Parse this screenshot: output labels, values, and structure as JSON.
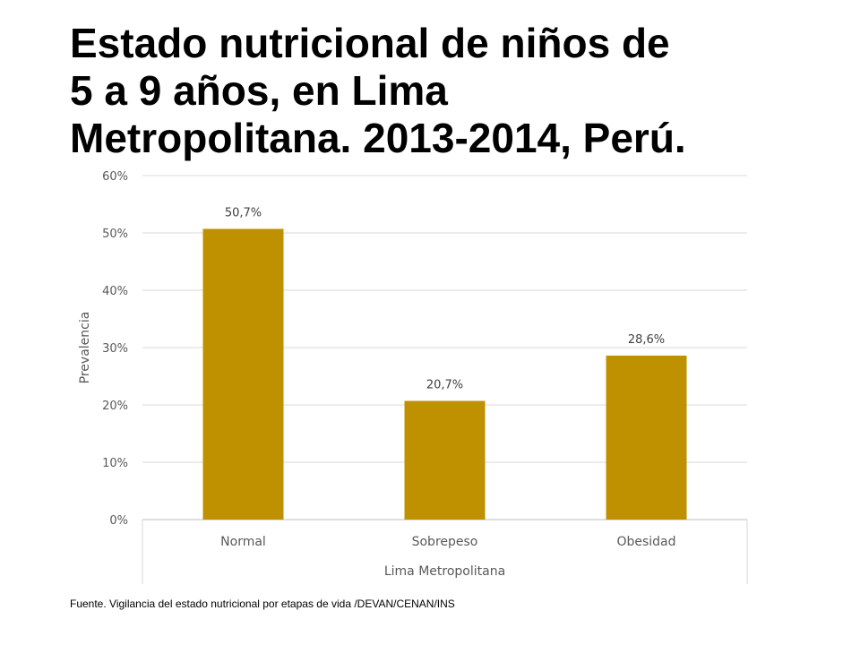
{
  "slide": {
    "title_lines": [
      "Estado nutricional de niños de",
      "5 a 9 años, en Lima",
      "Metropolitana. 2013-2014, Perú."
    ],
    "source": "Fuente. Vigilancia del estado nutricional por etapas de vida /DEVAN/CENAN/INS"
  },
  "chart_data": {
    "type": "bar",
    "categories": [
      "Normal",
      "Sobrepeso",
      "Obesidad"
    ],
    "values": [
      50.7,
      20.7,
      28.6
    ],
    "data_labels": [
      "50,7%",
      "20,7%",
      "28,6%"
    ],
    "ylabel": "Prevalencia",
    "xlabel": "Lima Metropolitana",
    "ylim": [
      0,
      60
    ],
    "yticks": [
      0,
      10,
      20,
      30,
      40,
      50,
      60
    ],
    "ytick_labels": [
      "0%",
      "10%",
      "20%",
      "30%",
      "40%",
      "50%",
      "60%"
    ],
    "grid": true,
    "legend": "none",
    "colors": {
      "bar": "#BF9000",
      "grid": "#D9D9D9",
      "text": "#595959"
    }
  }
}
